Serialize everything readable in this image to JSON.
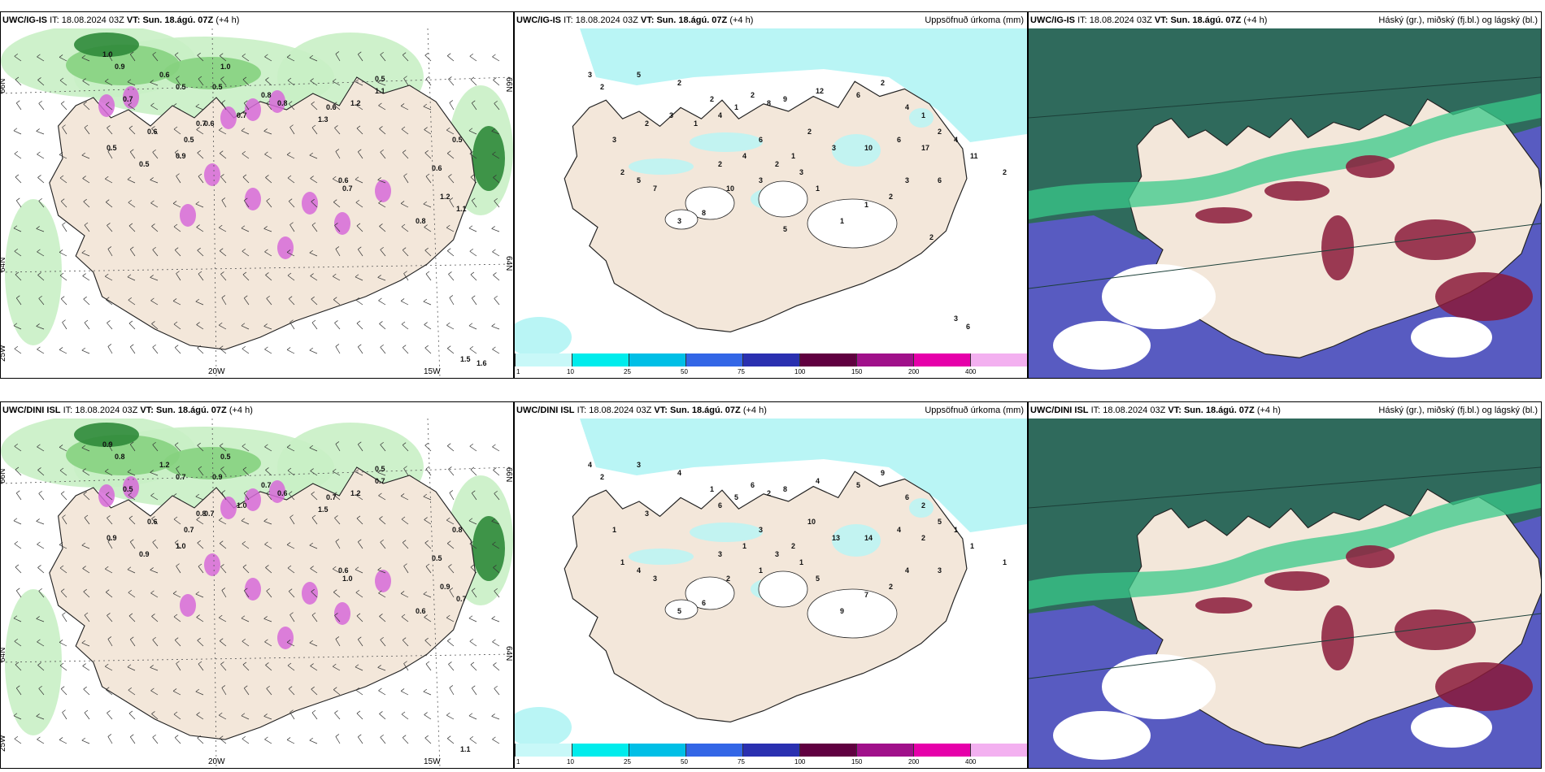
{
  "colors": {
    "land": "#f3e7da",
    "sea_light": "#c9efc5",
    "sea_mid": "#86d27f",
    "sea_dark": "#2f8a3a",
    "precip_cyan": "#b9f5f5",
    "cloud_dark": "#2f6a5c",
    "cloud_blue": "#5b5bc6",
    "cloud_red": "#8a1a3a",
    "cloud_green": "#39c98a",
    "magenta": "#d66ad8"
  },
  "rows": [
    {
      "model": "UWC/IG-IS",
      "it_label": "IT:",
      "it_value": "18.08.2024 03Z",
      "vt_label": "VT:",
      "vt_value": "Sun. 18.ágú. 07Z",
      "lead": "(+4 h)",
      "precip_title": "Uppsöfnuð úrkoma (mm)",
      "cloud_title": "Háský (gr.), miðský (fj.bl.) og lágský (bl.)",
      "wind_values": [
        "1.0",
        "0.9",
        "0.6",
        "0.5",
        "0.7",
        "0.5",
        "1.0",
        "0.8",
        "0.8",
        "0.7",
        "0.6",
        "0.6",
        "0.5",
        "0.5",
        "0.9",
        "0.7",
        "0.5",
        "0.6",
        "0.7",
        "0.5",
        "1.1",
        "1.2",
        "0.6",
        "1.3",
        "0.5",
        "0.6",
        "1.2",
        "1.1",
        "0.8",
        "1.5",
        "1.6"
      ],
      "precip_values": [
        "3",
        "2",
        "5",
        "2",
        "2",
        "4",
        "1",
        "2",
        "8",
        "9",
        "12",
        "6",
        "2",
        "4",
        "1",
        "2",
        "6",
        "10",
        "3",
        "2",
        "1",
        "6",
        "4",
        "2",
        "17",
        "4",
        "11",
        "2",
        "3",
        "6",
        "2",
        "1",
        "1",
        "1",
        "3",
        "2",
        "3",
        "10",
        "8",
        "3",
        "7",
        "5",
        "2",
        "3",
        "2",
        "3",
        "1",
        "5",
        "2",
        "3",
        "6"
      ]
    },
    {
      "model": "UWC/DINI ISL",
      "it_label": "IT:",
      "it_value": "18.08.2024 03Z",
      "vt_label": "VT:",
      "vt_value": "Sun. 18.ágú. 07Z",
      "lead": "(+4 h)",
      "precip_title": "Uppsöfnuð úrkoma (mm)",
      "cloud_title": "Háský (gr.), miðský (fj.bl.) og lágský (bl.)",
      "wind_values": [
        "0.9",
        "0.8",
        "1.2",
        "0.7",
        "0.5",
        "0.9",
        "0.5",
        "0.7",
        "0.6",
        "1.0",
        "0.7",
        "0.6",
        "0.7",
        "0.9",
        "1.0",
        "0.8",
        "0.9",
        "0.6",
        "1.0",
        "0.5",
        "0.7",
        "1.2",
        "0.7",
        "1.5",
        "0.8",
        "0.5",
        "0.9",
        "0.7",
        "0.6",
        "1.1"
      ],
      "precip_values": [
        "4",
        "2",
        "3",
        "4",
        "1",
        "6",
        "5",
        "6",
        "2",
        "8",
        "4",
        "5",
        "9",
        "6",
        "2",
        "5",
        "4",
        "14",
        "13",
        "10",
        "2",
        "3",
        "1",
        "3",
        "2",
        "1",
        "1",
        "1",
        "4",
        "3",
        "2",
        "7",
        "9",
        "5",
        "1",
        "3",
        "1",
        "2",
        "6",
        "5",
        "3",
        "4",
        "1",
        "1",
        "3"
      ]
    }
  ],
  "axes": {
    "lat_66": "66N",
    "lat_64": "64N",
    "lon_25": "25W",
    "lon_20": "20W",
    "lon_15": "15W",
    "lat_66r": "66N",
    "lat_64r": "64N"
  },
  "colorbar_ticks": [
    "1",
    "10",
    "25",
    "50",
    "75",
    "100",
    "150",
    "200",
    "400"
  ],
  "colorbar_colors": [
    "#c8f8f8",
    "#00ecec",
    "#00bfe6",
    "#3366e6",
    "#2a30b0",
    "#600040",
    "#a0108a",
    "#e600aa",
    "#f3b0f0"
  ]
}
